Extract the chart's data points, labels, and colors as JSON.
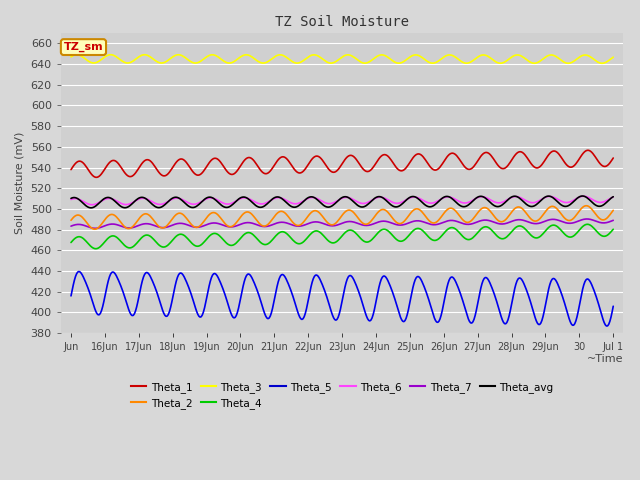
{
  "title": "TZ Soil Moisture",
  "ylabel": "Soil Moisture (mV)",
  "xlabel": "~Time",
  "box_label": "TZ_sm",
  "ylim": [
    380,
    670
  ],
  "yticks": [
    380,
    400,
    420,
    440,
    460,
    480,
    500,
    520,
    540,
    560,
    580,
    600,
    620,
    640,
    660
  ],
  "n_days": 16,
  "n_points": 480,
  "bg_color": "#d8d8d8",
  "plot_bg_color": "#d0d0d0",
  "grid_color": "#ffffff",
  "xtick_labels": [
    "Jun",
    "16Jun",
    "17Jun",
    "18Jun",
    "19Jun",
    "20Jun",
    "21Jun",
    "22Jun",
    "23Jun",
    "24Jun",
    "25Jun",
    "26Jun",
    "27Jun",
    "28Jun",
    "29Jun",
    "30",
    "Jul 1"
  ],
  "legend_entries": [
    "Theta_1",
    "Theta_2",
    "Theta_3",
    "Theta_4",
    "Theta_5",
    "Theta_6",
    "Theta_7",
    "Theta_avg"
  ],
  "legend_colors": [
    "#cc0000",
    "#ff8800",
    "#ffff00",
    "#00cc00",
    "#0000cc",
    "#ff44ff",
    "#9900cc",
    "#000000"
  ],
  "series_colors": {
    "Theta_1": "#cc0000",
    "Theta_2": "#ff8800",
    "Theta_3": "#ffff00",
    "Theta_4": "#00cc00",
    "Theta_5": "#0000ee",
    "Theta_6": "#ff44ff",
    "Theta_7": "#9900cc",
    "Theta_avg": "#000000"
  }
}
